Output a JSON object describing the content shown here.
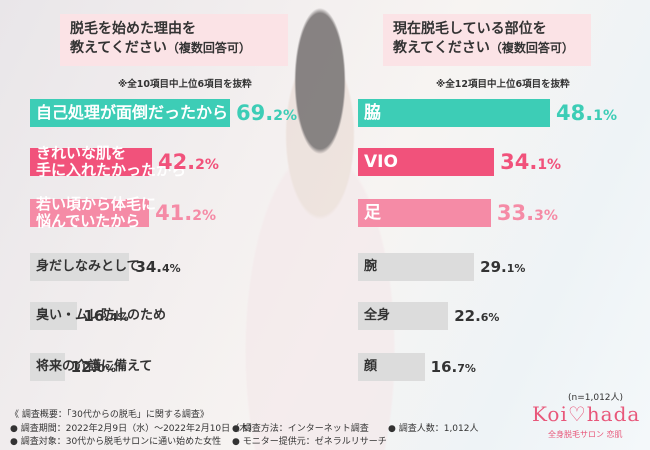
{
  "left_title": [
    "脱毛を始めた理由を",
    "教えてください",
    "（複数回答可）"
  ],
  "right_title": [
    "現在脱毛している部位を",
    "教えてください",
    "（複数回答可）"
  ],
  "left_note": "※全10項目中上位6項目を抜粋",
  "right_note": "※全12項目中上位6項目を抜粋",
  "colors": {
    "teal": "#3dcdb6",
    "pink": "#f1527b",
    "lightpink": "#f58ba6",
    "grey": "#dcdcdc"
  },
  "chart_data": [
    {
      "type": "bar",
      "title": "脱毛を始めた理由を教えてください（複数回答可）",
      "unit": "%",
      "categories": [
        "自己処理が面倒だったから",
        "きれいな肌を手に入れたかったから",
        "若い頃から体毛に悩んでいたから",
        "身だしなみとして",
        "臭い・ムレ防止のため",
        "将来の介護に備えて"
      ],
      "values": [
        69.2,
        42.2,
        41.2,
        34.4,
        16.4,
        12.0
      ],
      "label_lines": [
        [
          "自己処理が面倒だったから"
        ],
        [
          "きれいな肌を",
          "手に入れたかったから"
        ],
        [
          "若い頃から体毛に",
          "悩んでいたから"
        ],
        [
          "身だしなみとして"
        ],
        [
          "臭い・ムレ防止のため"
        ],
        [
          "将来の介護に備えて"
        ]
      ],
      "value_labels": [
        [
          "69.",
          "2%"
        ],
        [
          "42.",
          "2%"
        ],
        [
          "41.",
          "2%"
        ],
        [
          "34.",
          "4%"
        ],
        [
          "16.",
          "4%"
        ],
        [
          "12.",
          "0%"
        ]
      ],
      "colors": [
        "#3dcdb6",
        "#f1527b",
        "#f58ba6",
        "#dcdcdc",
        "#dcdcdc",
        "#dcdcdc"
      ]
    },
    {
      "type": "bar",
      "title": "現在脱毛している部位を教えてください（複数回答可）",
      "unit": "%",
      "categories": [
        "脇",
        "VIO",
        "足",
        "腕",
        "全身",
        "顔"
      ],
      "values": [
        48.1,
        34.1,
        33.3,
        29.1,
        22.6,
        16.7
      ],
      "label_lines": [
        [
          "脇"
        ],
        [
          "VIO"
        ],
        [
          "足"
        ],
        [
          "腕"
        ],
        [
          "全身"
        ],
        [
          "顔"
        ]
      ],
      "value_labels": [
        [
          "48.",
          "1%"
        ],
        [
          "34.",
          "1%"
        ],
        [
          "33.",
          "3%"
        ],
        [
          "29.",
          "1%"
        ],
        [
          "22.",
          "6%"
        ],
        [
          "16.",
          "7%"
        ]
      ],
      "colors": [
        "#3dcdb6",
        "#f1527b",
        "#f58ba6",
        "#dcdcdc",
        "#dcdcdc",
        "#dcdcdc"
      ]
    }
  ],
  "n_note": "(n=1,012人)",
  "footer": {
    "survey": "《 調査概要：「30代からの脱毛」に関する調査》",
    "period": "● 調査期間：2022年2月9日（水）～2022年2月10日（木）",
    "method": "● 調査方法：インターネット調査",
    "count": "● 調査人数：1,012人",
    "target": "● 調査対象：30代から脱毛サロンに通い始めた女性",
    "provider": "● モニター提供元：ゼネラルリサーチ"
  },
  "logo": {
    "text": "Koi♡hada",
    "sub": "全身脱毛サロン 恋肌"
  }
}
